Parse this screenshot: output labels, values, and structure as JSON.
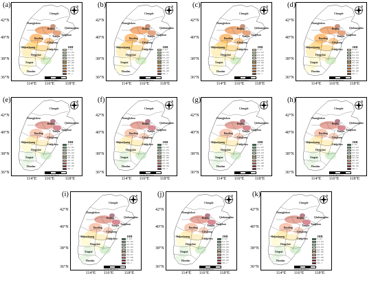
{
  "latitude_ticks": [
    "42°N",
    "40°N",
    "38°N",
    "36°N"
  ],
  "longitude_ticks": [
    "114°E",
    "116°E",
    "118°E"
  ],
  "compass_letter": "N",
  "cities": [
    "Chengde",
    "Zhangjiakou",
    "Beijing",
    "Qinhuangdao",
    "Tangshan",
    "Tianjin",
    "Baoding",
    "Langfang",
    "Cangzhou",
    "Shijiazhuang",
    "Hengshui",
    "Xingtai",
    "Handan"
  ],
  "legend": {
    "title": "DHI",
    "classes": [
      "0 – 0.1",
      "0.1 – 0.2",
      "0.2 – 0.3",
      "0.3 – 0.4",
      "0.4 – 0.5",
      "0.5 – 0.6",
      "0.6 – 0.7",
      "0.7 – 0.8",
      "0.8 – 0.9",
      "0.9 – 1"
    ]
  },
  "scale_bar": {
    "ticks": "0  45  90   180  270",
    "unit": "km"
  },
  "palettes": {
    "yellow_red": [
      "#f7fcb9",
      "#d9f0a3",
      "#addd8e",
      "#fff7bc",
      "#fee391",
      "#fec44f",
      "#fe9929",
      "#ec7014",
      "#cc4c02",
      "#8c2d04"
    ],
    "green_red": [
      "#1a7837",
      "#5aae61",
      "#a6dba0",
      "#d9f0d3",
      "#fff7bc",
      "#fee391",
      "#f4a582",
      "#d6604d",
      "#b2182b",
      "#67001f"
    ]
  },
  "panels": [
    {
      "label": "(a)",
      "palette": "yellow_red"
    },
    {
      "label": "(b)",
      "palette": "yellow_red"
    },
    {
      "label": "(c)",
      "palette": "yellow_red"
    },
    {
      "label": "(d)",
      "palette": "yellow_red"
    },
    {
      "label": "(e)",
      "palette": "green_red"
    },
    {
      "label": "(f)",
      "palette": "green_red"
    },
    {
      "label": "(g)",
      "palette": "green_red"
    },
    {
      "label": "(h)",
      "palette": "green_red"
    },
    {
      "label": "(i)",
      "palette": "green_red"
    },
    {
      "label": "(j)",
      "palette": "green_red"
    },
    {
      "label": "(k)",
      "palette": "green_red"
    }
  ]
}
